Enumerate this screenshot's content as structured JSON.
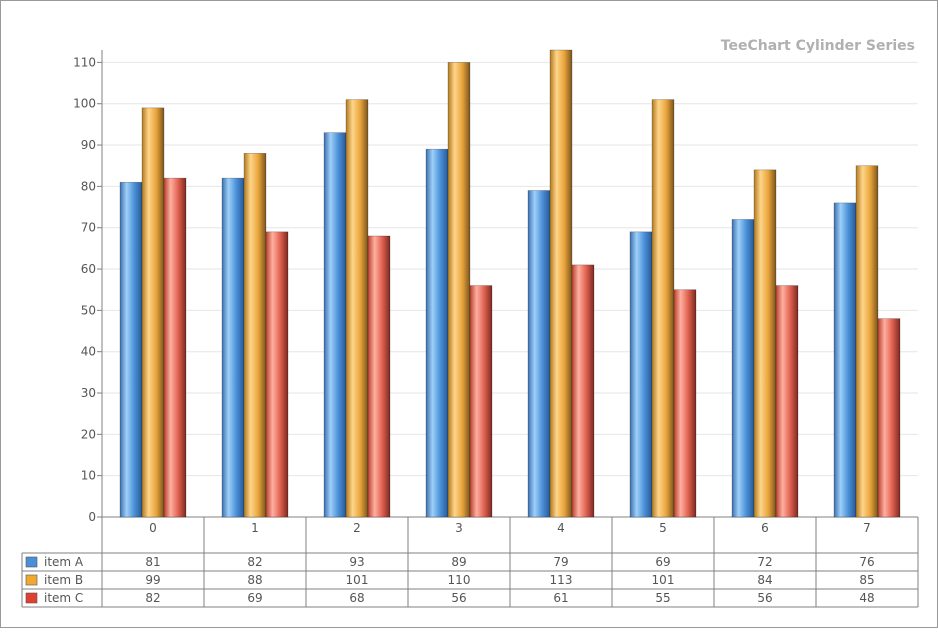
{
  "chart_data": {
    "type": "bar",
    "title": "TeeChart Cylinder Series",
    "xlabel": "",
    "ylabel": "",
    "ylim": [
      0,
      113
    ],
    "yticks": [
      0,
      10,
      20,
      30,
      40,
      50,
      60,
      70,
      80,
      90,
      100,
      110
    ],
    "categories": [
      "0",
      "1",
      "2",
      "3",
      "4",
      "5",
      "6",
      "7"
    ],
    "grid": true,
    "legend": "data table below chart",
    "series": [
      {
        "name": "item A",
        "color": "#4a90d9",
        "values": [
          81,
          82,
          93,
          89,
          79,
          69,
          72,
          76
        ]
      },
      {
        "name": "item B",
        "color": "#f0a830",
        "values": [
          99,
          88,
          101,
          110,
          113,
          101,
          84,
          85
        ]
      },
      {
        "name": "item C",
        "color": "#e04030",
        "values": [
          82,
          69,
          68,
          56,
          61,
          55,
          56,
          48
        ]
      }
    ]
  }
}
